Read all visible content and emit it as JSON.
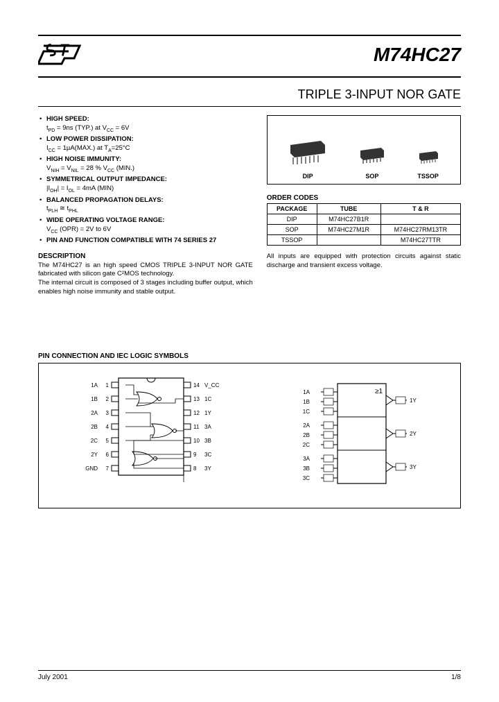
{
  "header": {
    "part_number": "M74HC27",
    "subtitle": "TRIPLE 3-INPUT NOR GATE"
  },
  "features": [
    {
      "title": "HIGH SPEED:",
      "detail": "t_PD = 9ns (TYP.) at V_CC = 6V"
    },
    {
      "title": "LOW POWER DISSIPATION:",
      "detail": "I_CC = 1µA(MAX.) at T_A=25°C"
    },
    {
      "title": "HIGH NOISE IMMUNITY:",
      "detail": "V_NIH = V_NIL = 28 % V_CC (MIN.)"
    },
    {
      "title": "SYMMETRICAL OUTPUT IMPEDANCE:",
      "detail": "|I_OH| = I_OL = 4mA (MIN)"
    },
    {
      "title": "BALANCED PROPAGATION DELAYS:",
      "detail": "t_PLH ≅ t_PHL"
    },
    {
      "title": "WIDE OPERATING VOLTAGE RANGE:",
      "detail": "V_CC (OPR) = 2V to 6V"
    },
    {
      "title": "PIN AND FUNCTION COMPATIBLE WITH 74 SERIES 27",
      "detail": ""
    }
  ],
  "description": {
    "heading": "DESCRIPTION",
    "para1": "The M74HC27 is an high speed CMOS TRIPLE 3-INPUT NOR GATE fabricated with silicon gate C²MOS technology.",
    "para2": "The internal circuit is composed of 3 stages including buffer output, which enables high noise immunity and stable output."
  },
  "packages": [
    "DIP",
    "SOP",
    "TSSOP"
  ],
  "order_codes": {
    "heading": "ORDER CODES",
    "columns": [
      "PACKAGE",
      "TUBE",
      "T & R"
    ],
    "rows": [
      [
        "DIP",
        "M74HC27B1R",
        ""
      ],
      [
        "SOP",
        "M74HC27M1R",
        "M74HC27RM13TR"
      ],
      [
        "TSSOP",
        "",
        "M74HC27TTR"
      ]
    ]
  },
  "right_note": "All inputs are equipped with protection circuits against static discharge and transient excess voltage.",
  "pin_section": {
    "heading": "PIN CONNECTION AND IEC LOGIC SYMBOLS"
  },
  "pin_left": {
    "left_pins": [
      "1A",
      "1B",
      "2A",
      "2B",
      "2C",
      "2Y",
      "GND"
    ],
    "left_nums": [
      "1",
      "2",
      "3",
      "4",
      "5",
      "6",
      "7"
    ],
    "right_nums": [
      "14",
      "13",
      "12",
      "11",
      "10",
      "9",
      "8"
    ],
    "right_pins": [
      "V_CC",
      "1C",
      "1Y",
      "3A",
      "3B",
      "3C",
      "3Y"
    ]
  },
  "iec": {
    "left_labels": [
      "1A",
      "1B",
      "1C",
      "2A",
      "2B",
      "2C",
      "3A",
      "3B",
      "3C"
    ],
    "outputs": [
      "1Y",
      "2Y",
      "3Y"
    ],
    "symbol": "≥1"
  },
  "footer": {
    "date": "July 2001",
    "page": "1/8"
  },
  "colors": {
    "text": "#000000",
    "bg": "#ffffff",
    "rule": "#000000"
  }
}
